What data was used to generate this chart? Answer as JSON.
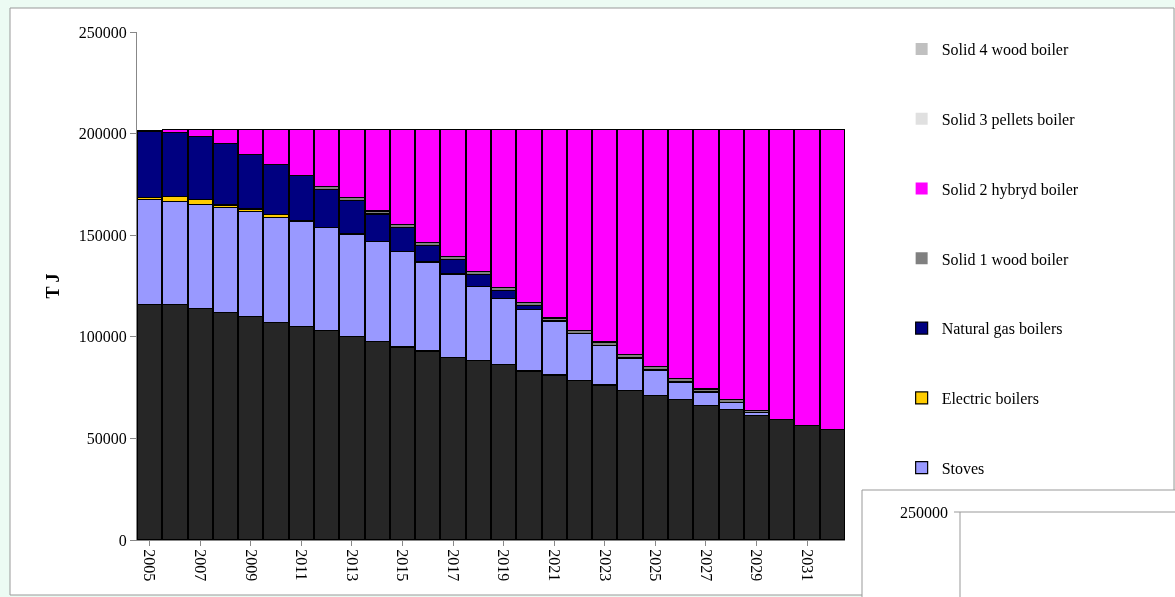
{
  "chart_data": [
    {
      "type": "bar",
      "stacked": true,
      "ylabel": "T J",
      "legend": "right",
      "categories": [
        "2005",
        null,
        "2007",
        null,
        "2009",
        null,
        "2011",
        null,
        "2013",
        null,
        "2015",
        null,
        "2017",
        null,
        "2019",
        null,
        "2021",
        null,
        "2023",
        null,
        "2025",
        null,
        "2027",
        null,
        "2029",
        null,
        "2031",
        null
      ],
      "ylim": [
        0,
        250000
      ],
      "yticks": [
        0,
        50000,
        100000,
        150000,
        200000,
        250000
      ],
      "series": [
        {
          "color": "#262626",
          "values": [
            116000,
            116000,
            114000,
            112000,
            110000,
            107000,
            105000,
            103000,
            100000,
            97500,
            95000,
            93000,
            90000,
            88200,
            86200,
            83200,
            81200,
            78300,
            76300,
            73500,
            71300,
            69200,
            66300,
            64200,
            61400,
            59200,
            56400,
            54200
          ]
        },
        {
          "name": "Stoves",
          "color": "#9999ff",
          "values": [
            51400,
            50600,
            51200,
            51600,
            51600,
            51700,
            51700,
            50700,
            50600,
            49300,
            46800,
            43800,
            40900,
            36600,
            32700,
            30300,
            26600,
            23200,
            19600,
            16100,
            12400,
            8600,
            6500,
            3600,
            1500,
            0,
            0,
            0
          ]
        },
        {
          "name": "Electric boilers",
          "color": "#ffcc00",
          "values": [
            1200,
            2300,
            2500,
            1300,
            1300,
            1300,
            500,
            0,
            0,
            0,
            0,
            0,
            0,
            0,
            0,
            0,
            0,
            0,
            0,
            0,
            0,
            0,
            0,
            0,
            0,
            0,
            0,
            0
          ]
        },
        {
          "name": "Natural gas boilers",
          "color": "#000080",
          "values": [
            32700,
            31500,
            30700,
            30100,
            27000,
            24900,
            22100,
            18700,
            16600,
            13600,
            12100,
            8300,
            7100,
            5800,
            3700,
            2000,
            0,
            0,
            0,
            0,
            0,
            0,
            0,
            0,
            0,
            0,
            0,
            0
          ]
        },
        {
          "name": "Solid 1 wood boiler",
          "color": "#808080",
          "values": [
            0,
            0,
            0,
            0,
            0,
            0,
            0,
            1500,
            1500,
            1500,
            1500,
            1500,
            1500,
            1500,
            1500,
            1500,
            1500,
            1500,
            1500,
            1500,
            1500,
            1500,
            1500,
            1500,
            800,
            0,
            0,
            0
          ]
        },
        {
          "name": "Solid 2 hybryd boiler",
          "color": "#ff00ff",
          "values": [
            0,
            1600,
            3600,
            7000,
            12100,
            17100,
            22700,
            28100,
            33300,
            40100,
            46600,
            55400,
            62500,
            69900,
            77900,
            85000,
            92700,
            99000,
            104600,
            110900,
            116800,
            122700,
            127700,
            132700,
            138300,
            142800,
            145600,
            147800
          ]
        },
        {
          "name": "Solid 3 pellets boiler",
          "color": "#e0e0e0",
          "values": [
            0,
            0,
            0,
            0,
            0,
            0,
            0,
            0,
            0,
            0,
            0,
            0,
            0,
            0,
            0,
            0,
            0,
            0,
            0,
            0,
            0,
            0,
            0,
            0,
            0,
            0,
            0,
            0
          ]
        },
        {
          "name": "Solid 4 wood boiler",
          "color": "#c0c0c0",
          "values": [
            0,
            0,
            0,
            0,
            0,
            0,
            0,
            0,
            0,
            0,
            0,
            0,
            0,
            0,
            0,
            0,
            0,
            0,
            0,
            0,
            0,
            0,
            0,
            0,
            0,
            0,
            0,
            0
          ]
        }
      ]
    },
    {
      "type": "other",
      "annotations": [
        "250000"
      ]
    }
  ]
}
